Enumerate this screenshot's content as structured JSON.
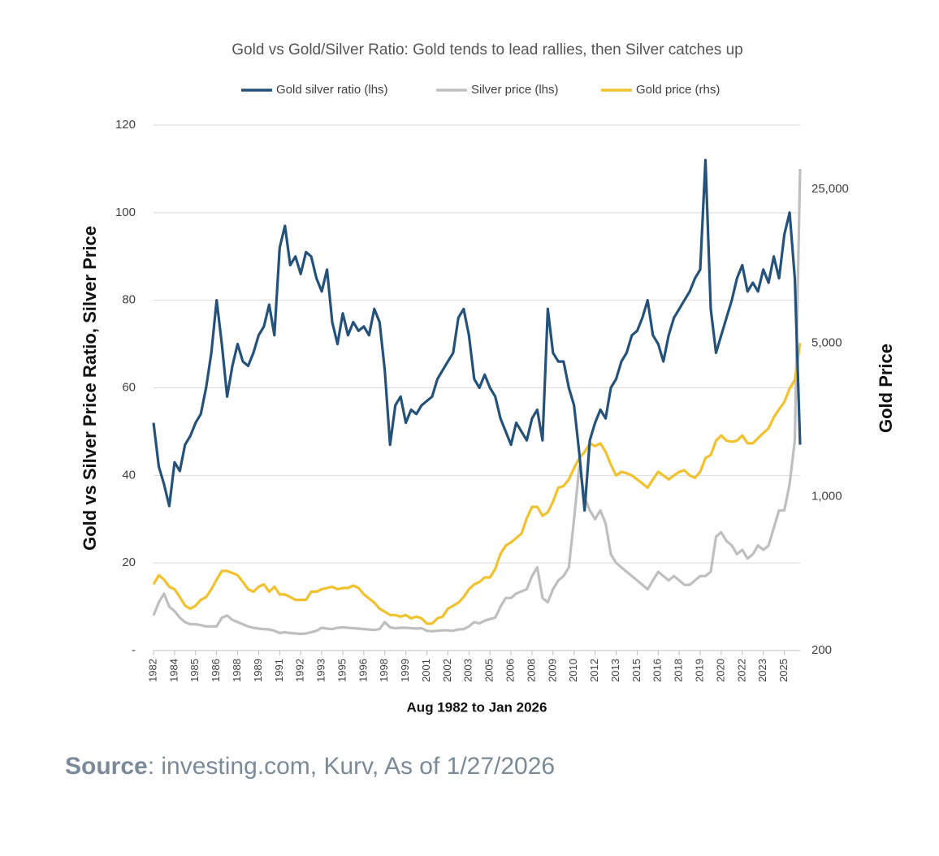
{
  "chart_data": {
    "type": "line",
    "title": "Gold vs Gold/Silver Ratio: Gold tends to lead rallies, then Silver catches up",
    "x_label": "Aug 1982 to Jan 2026",
    "y_label": "Gold vs Silver Price Ratio, Silver Price",
    "y2_label": "Gold Price",
    "source": {
      "label": "Source",
      "text": ": investing.com, Kurv, As of 1/27/2026"
    },
    "legend": "top",
    "grid": true,
    "y2scale": "log",
    "categories": [
      "1982",
      null,
      null,
      null,
      "1984",
      null,
      null,
      null,
      "1985",
      null,
      null,
      null,
      "1986",
      null,
      null,
      null,
      "1988",
      null,
      null,
      null,
      "1989",
      null,
      null,
      null,
      "1991",
      null,
      null,
      null,
      "1992",
      null,
      null,
      null,
      "1993",
      null,
      null,
      null,
      "1995",
      null,
      null,
      null,
      "1996",
      null,
      null,
      null,
      "1998",
      null,
      null,
      null,
      "1999",
      null,
      null,
      null,
      "2001",
      null,
      null,
      null,
      "2002",
      null,
      null,
      null,
      "2003",
      null,
      null,
      null,
      "2005",
      null,
      null,
      null,
      "2006",
      null,
      null,
      null,
      "2008",
      null,
      null,
      null,
      "2009",
      null,
      null,
      null,
      "2010",
      null,
      null,
      null,
      "2012",
      null,
      null,
      null,
      "2013",
      null,
      null,
      null,
      "2015",
      null,
      null,
      null,
      "2016",
      null,
      null,
      null,
      "2018",
      null,
      null,
      null,
      "2019",
      null,
      null,
      null,
      "2020",
      null,
      null,
      null,
      "2022",
      null,
      null,
      null,
      "2023",
      null,
      null,
      null,
      "2025",
      null,
      null,
      null
    ],
    "ylim": [
      0,
      120
    ],
    "yticks": [
      {
        "value": 0,
        "label": "-"
      },
      20,
      40,
      60,
      80,
      100,
      120
    ],
    "y2lim": [
      200,
      49000
    ],
    "y2ticks": [
      200,
      {
        "value": 1000,
        "label": "1,000"
      },
      {
        "value": 5000,
        "label": "5,000"
      },
      {
        "value": 25000,
        "label": "25,000"
      }
    ],
    "series": [
      {
        "name": "Gold silver ratio (lhs)",
        "color": "#24527a",
        "axis": "y",
        "values": [
          52,
          42,
          38,
          33,
          43,
          41,
          47,
          49,
          52,
          54,
          60,
          68,
          80,
          70,
          58,
          65,
          70,
          66,
          65,
          68,
          72,
          74,
          79,
          72,
          92,
          97,
          88,
          90,
          86,
          91,
          90,
          85,
          82,
          87,
          75,
          70,
          77,
          72,
          75,
          73,
          74,
          72,
          78,
          75,
          64,
          47,
          56,
          58,
          52,
          55,
          54,
          56,
          57,
          58,
          62,
          64,
          66,
          68,
          76,
          78,
          72,
          62,
          60,
          63,
          60,
          58,
          53,
          50,
          47,
          52,
          50,
          48,
          53,
          55,
          48,
          78,
          68,
          66,
          66,
          60,
          56,
          45,
          32,
          48,
          52,
          55,
          53,
          60,
          62,
          66,
          68,
          72,
          73,
          76,
          80,
          72,
          70,
          66,
          72,
          76,
          78,
          80,
          82,
          85,
          87,
          112,
          78,
          68,
          72,
          76,
          80,
          85,
          88,
          82,
          84,
          82,
          87,
          84,
          90,
          85,
          95,
          100,
          85,
          47
        ]
      },
      {
        "name": "Silver  price (lhs)",
        "color": "#bfbfbf",
        "axis": "y",
        "values": [
          8,
          11,
          13,
          10,
          9,
          7.5,
          6.5,
          6,
          6,
          5.8,
          5.5,
          5.5,
          5.5,
          7.5,
          8,
          7,
          6.5,
          6,
          5.5,
          5.2,
          5,
          4.9,
          4.8,
          4.5,
          4,
          4.2,
          4,
          3.9,
          3.8,
          3.9,
          4.2,
          4.5,
          5.2,
          5,
          4.9,
          5.2,
          5.3,
          5.2,
          5.1,
          5,
          4.9,
          4.8,
          4.7,
          4.9,
          6.5,
          5.3,
          5.1,
          5.2,
          5.2,
          5.1,
          5,
          5.1,
          4.5,
          4.4,
          4.5,
          4.6,
          4.6,
          4.5,
          4.8,
          4.9,
          5.5,
          6.5,
          6.2,
          6.8,
          7.2,
          7.5,
          10,
          12,
          12,
          13,
          13.5,
          14,
          17,
          19,
          12,
          11,
          14,
          16,
          17,
          19,
          30,
          42,
          35,
          32,
          30,
          32,
          29,
          22,
          20,
          19,
          18,
          17,
          16,
          15,
          14,
          16,
          18,
          17,
          16,
          17,
          16,
          15,
          15,
          16,
          17,
          17,
          18,
          26,
          27,
          25,
          24,
          22,
          23,
          21,
          22,
          24,
          23,
          24,
          28,
          32,
          32,
          38,
          48,
          110
        ]
      },
      {
        "name": "Gold price (rhs)",
        "color": "#f2c12e",
        "axis": "y2",
        "values": [
          400,
          440,
          420,
          390,
          380,
          350,
          320,
          310,
          320,
          340,
          350,
          380,
          420,
          460,
          460,
          450,
          440,
          410,
          380,
          370,
          390,
          400,
          370,
          390,
          360,
          360,
          350,
          340,
          340,
          340,
          370,
          370,
          380,
          385,
          390,
          380,
          385,
          385,
          395,
          385,
          360,
          345,
          330,
          310,
          300,
          290,
          290,
          285,
          290,
          280,
          285,
          280,
          265,
          265,
          280,
          285,
          310,
          320,
          330,
          350,
          380,
          400,
          410,
          430,
          430,
          470,
          550,
          600,
          620,
          650,
          680,
          800,
          900,
          900,
          820,
          850,
          950,
          1100,
          1120,
          1200,
          1350,
          1500,
          1600,
          1750,
          1700,
          1750,
          1600,
          1400,
          1250,
          1300,
          1280,
          1250,
          1200,
          1150,
          1100,
          1200,
          1300,
          1250,
          1200,
          1250,
          1300,
          1320,
          1250,
          1220,
          1300,
          1500,
          1550,
          1800,
          1900,
          1800,
          1780,
          1800,
          1900,
          1750,
          1750,
          1850,
          1950,
          2050,
          2300,
          2500,
          2700,
          3100,
          3400,
          5000
        ]
      }
    ]
  }
}
